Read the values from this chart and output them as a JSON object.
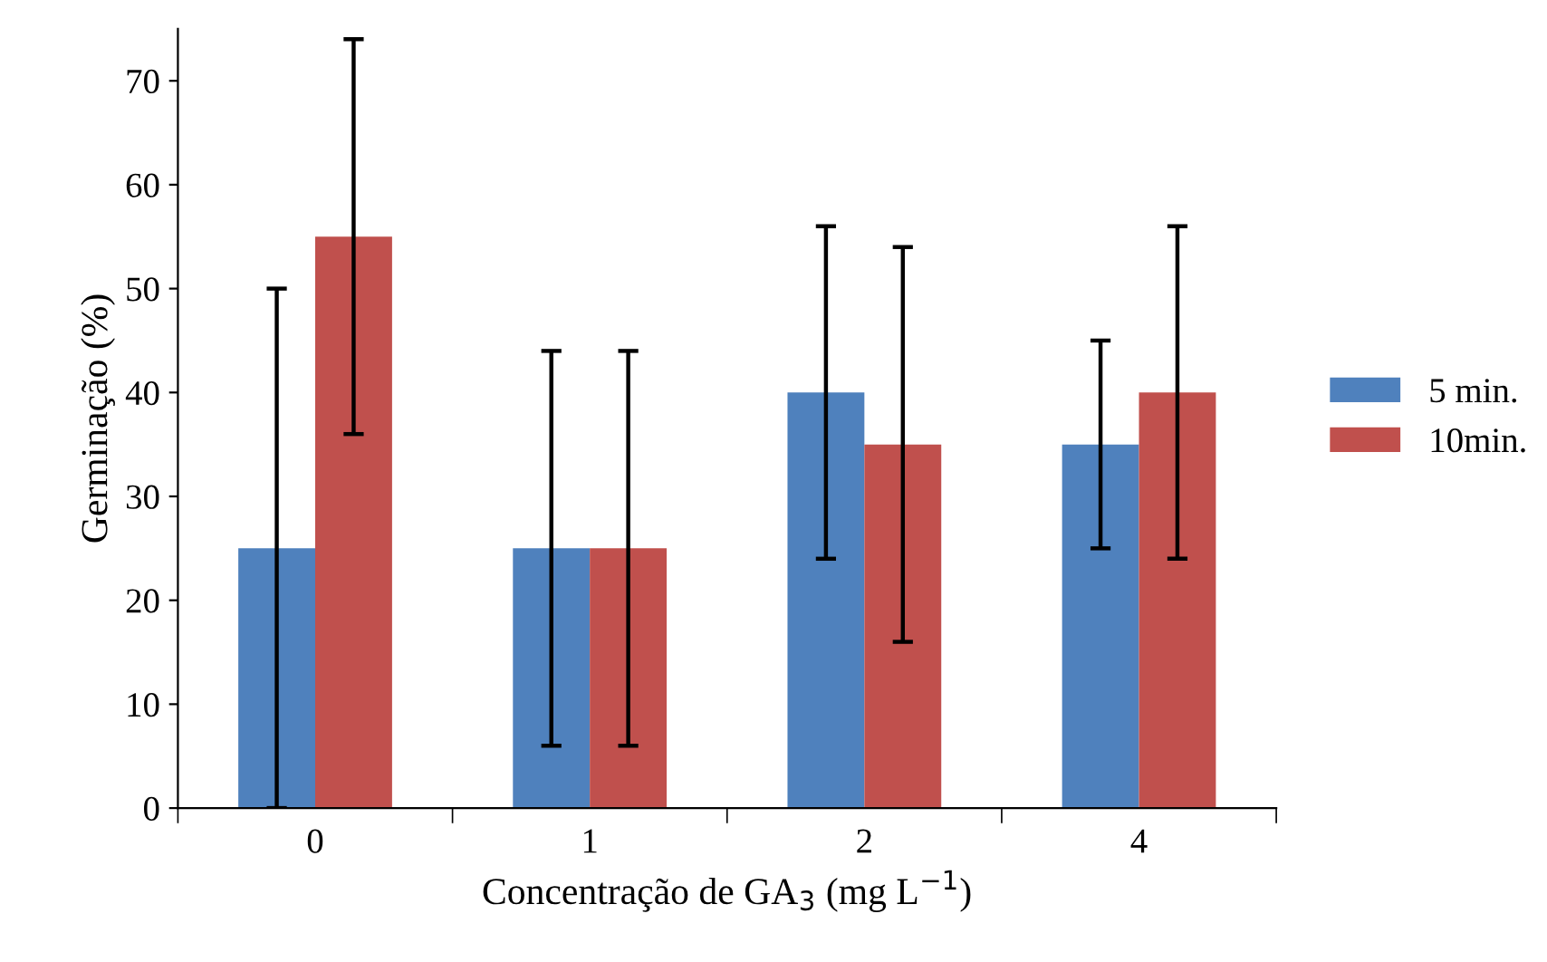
{
  "chart_data": {
    "type": "bar",
    "xlabel": "Concentração de GA$_{3}$ (mg L$^{−1}$)",
    "ylabel": "Germinação (%)",
    "categories": [
      "0",
      "1",
      "2",
      "4"
    ],
    "series": [
      {
        "name": "5 min.",
        "color": "#4f81bd",
        "values": [
          25,
          25,
          40,
          35
        ],
        "errors": [
          25,
          19,
          16,
          10
        ]
      },
      {
        "name": "10min.",
        "color": "#c0504d",
        "values": [
          55,
          25,
          35,
          40
        ],
        "errors": [
          19,
          19,
          19,
          16
        ]
      }
    ],
    "ylim": [
      0,
      75
    ],
    "yticks": [
      0,
      10,
      20,
      30,
      40,
      50,
      60,
      70
    ],
    "grid": false,
    "legend": "right"
  }
}
